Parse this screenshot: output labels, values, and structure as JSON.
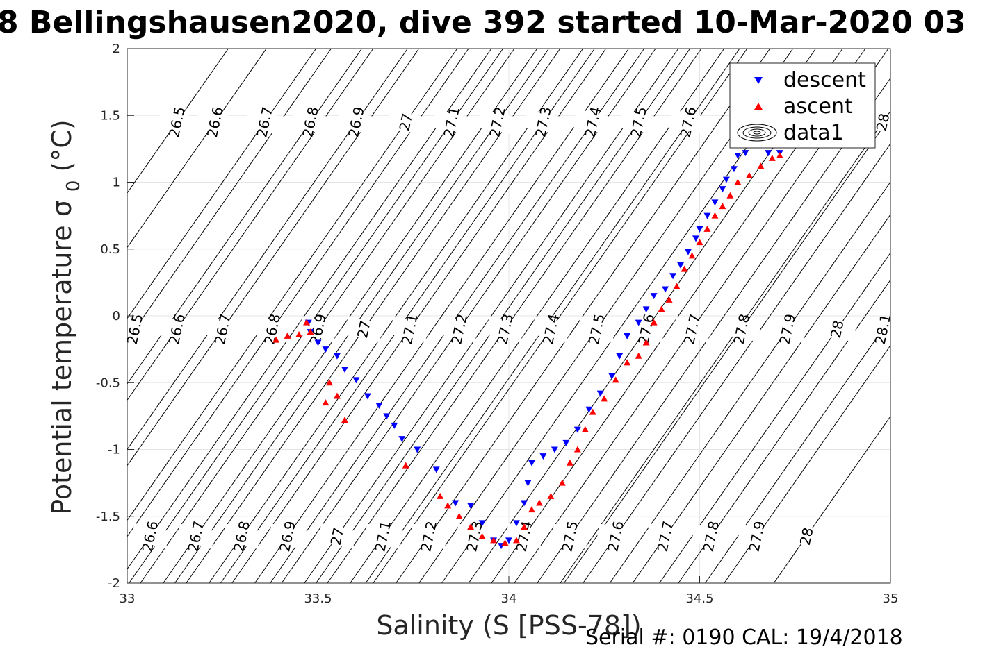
{
  "figure": {
    "title": "8 Bellingshausen2020, dive 392 started 10-Mar-2020 03",
    "footer": "Serial #: 0190  CAL: 19/4/2018"
  },
  "chart_data": {
    "type": "scatter",
    "title": "8 Bellingshausen2020, dive 392 started 10-Mar-2020 03",
    "xlabel": "Salinity (S [PSS-78])",
    "ylabel": "Potential temperature σ 0 (°C)",
    "xlim": [
      33,
      35
    ],
    "ylim": [
      -2,
      2
    ],
    "xticks": [
      33,
      33.5,
      34,
      34.5,
      35
    ],
    "xtick_labels": [
      "33",
      "33.5",
      "34",
      "34.5",
      "35"
    ],
    "yticks": [
      2,
      1.5,
      1,
      0.5,
      0,
      -0.5,
      -1,
      -1.5,
      -2
    ],
    "ytick_labels": [
      "2",
      "1.5",
      "1",
      "0.5",
      "0",
      "-0.5",
      "-1",
      "-1.5",
      "-2"
    ],
    "grid": true,
    "legend_position": "top-right",
    "legend": [
      "descent",
      "ascent",
      "data1"
    ],
    "series": [
      {
        "name": "descent",
        "marker": "triangle-down",
        "color": "#0000ff",
        "points": [
          [
            33.475,
            -0.05
          ],
          [
            33.48,
            -0.12
          ],
          [
            33.5,
            -0.2
          ],
          [
            33.52,
            -0.25
          ],
          [
            33.55,
            -0.3
          ],
          [
            33.57,
            -0.4
          ],
          [
            33.6,
            -0.48
          ],
          [
            33.63,
            -0.6
          ],
          [
            33.66,
            -0.67
          ],
          [
            33.68,
            -0.75
          ],
          [
            33.7,
            -0.82
          ],
          [
            33.72,
            -0.92
          ],
          [
            33.76,
            -1.0
          ],
          [
            33.81,
            -1.15
          ],
          [
            33.86,
            -1.4
          ],
          [
            33.9,
            -1.42
          ],
          [
            33.93,
            -1.55
          ],
          [
            33.96,
            -1.68
          ],
          [
            33.98,
            -1.72
          ],
          [
            34.0,
            -1.68
          ],
          [
            34.02,
            -1.55
          ],
          [
            34.04,
            -1.4
          ],
          [
            34.05,
            -1.25
          ],
          [
            34.06,
            -1.1
          ],
          [
            34.09,
            -1.05
          ],
          [
            34.12,
            -1.0
          ],
          [
            34.15,
            -0.95
          ],
          [
            34.18,
            -0.85
          ],
          [
            34.21,
            -0.7
          ],
          [
            34.24,
            -0.58
          ],
          [
            34.27,
            -0.45
          ],
          [
            34.29,
            -0.3
          ],
          [
            34.31,
            -0.15
          ],
          [
            34.34,
            -0.05
          ],
          [
            34.36,
            0.05
          ],
          [
            34.38,
            0.15
          ],
          [
            34.41,
            0.2
          ],
          [
            34.43,
            0.3
          ],
          [
            34.45,
            0.38
          ],
          [
            34.47,
            0.48
          ],
          [
            34.49,
            0.58
          ],
          [
            34.5,
            0.65
          ],
          [
            34.52,
            0.75
          ],
          [
            34.54,
            0.85
          ],
          [
            34.56,
            0.95
          ],
          [
            34.57,
            1.02
          ],
          [
            34.59,
            1.1
          ],
          [
            34.6,
            1.2
          ],
          [
            34.62,
            1.22
          ],
          [
            34.68,
            1.22
          ],
          [
            34.71,
            1.22
          ]
        ]
      },
      {
        "name": "ascent",
        "marker": "triangle-up",
        "color": "#ff0000",
        "points": [
          [
            33.39,
            -0.18
          ],
          [
            33.42,
            -0.15
          ],
          [
            33.45,
            -0.14
          ],
          [
            33.47,
            -0.05
          ],
          [
            33.48,
            -0.12
          ],
          [
            33.53,
            -0.5
          ],
          [
            33.55,
            -0.6
          ],
          [
            33.57,
            -0.78
          ],
          [
            33.52,
            -0.65
          ],
          [
            33.73,
            -1.12
          ],
          [
            33.82,
            -1.35
          ],
          [
            33.84,
            -1.42
          ],
          [
            33.87,
            -1.5
          ],
          [
            33.9,
            -1.58
          ],
          [
            33.93,
            -1.65
          ],
          [
            33.96,
            -1.68
          ],
          [
            33.99,
            -1.7
          ],
          [
            34.02,
            -1.68
          ],
          [
            34.04,
            -1.58
          ],
          [
            34.06,
            -1.45
          ],
          [
            34.08,
            -1.4
          ],
          [
            34.11,
            -1.35
          ],
          [
            34.14,
            -1.25
          ],
          [
            34.16,
            -1.1
          ],
          [
            34.18,
            -1.0
          ],
          [
            34.2,
            -0.85
          ],
          [
            34.22,
            -0.72
          ],
          [
            34.25,
            -0.62
          ],
          [
            34.28,
            -0.48
          ],
          [
            34.31,
            -0.35
          ],
          [
            34.34,
            -0.3
          ],
          [
            34.36,
            -0.2
          ],
          [
            34.38,
            -0.05
          ],
          [
            34.4,
            0.05
          ],
          [
            34.42,
            0.12
          ],
          [
            34.44,
            0.22
          ],
          [
            34.46,
            0.35
          ],
          [
            34.48,
            0.45
          ],
          [
            34.5,
            0.55
          ],
          [
            34.52,
            0.65
          ],
          [
            34.54,
            0.75
          ],
          [
            34.56,
            0.82
          ],
          [
            34.58,
            0.9
          ],
          [
            34.6,
            1.0
          ],
          [
            34.63,
            1.05
          ],
          [
            34.66,
            1.12
          ],
          [
            34.69,
            1.18
          ],
          [
            34.71,
            1.2
          ]
        ]
      }
    ],
    "contours": {
      "name": "data1",
      "color": "#000000",
      "levels": [
        "26.5",
        "26.6",
        "26.7",
        "26.8",
        "26.9",
        "27",
        "27.1",
        "27.2",
        "27.3",
        "27.4",
        "27.5",
        "27.6",
        "27.7",
        "27.8",
        "27.9",
        "28",
        "28.1"
      ],
      "label_rows": [
        {
          "y": 1.45,
          "labels": [
            [
              "26.5",
              33.13
            ],
            [
              "26.6",
              33.23
            ],
            [
              "26.7",
              33.36
            ],
            [
              "26.8",
              33.48
            ],
            [
              "26.9",
              33.6
            ],
            [
              "27",
              33.73
            ],
            [
              "27.1",
              33.85
            ],
            [
              "27.2",
              33.97
            ],
            [
              "27.3",
              34.09
            ],
            [
              "27.4",
              34.22
            ],
            [
              "27.5",
              34.34
            ],
            [
              "27.6",
              34.47
            ],
            [
              "28",
              34.98
            ]
          ]
        },
        {
          "y": -0.1,
          "labels": [
            [
              "26.5",
              33.02
            ],
            [
              "26.6",
              33.13
            ],
            [
              "26.7",
              33.25
            ],
            [
              "26.8",
              33.38
            ],
            [
              "26.9",
              33.5
            ],
            [
              "27",
              33.62
            ],
            [
              "27.1",
              33.74
            ],
            [
              "27.2",
              33.87
            ],
            [
              "27.3",
              33.99
            ],
            [
              "27.4",
              34.11
            ],
            [
              "27.5",
              34.23
            ],
            [
              "27.6",
              34.36
            ],
            [
              "27.7",
              34.48
            ],
            [
              "27.8",
              34.61
            ],
            [
              "27.9",
              34.73
            ],
            [
              "28",
              34.86
            ],
            [
              "28.1",
              34.98
            ]
          ]
        },
        {
          "y": -1.65,
          "labels": [
            [
              "26.6",
              33.06
            ],
            [
              "26.7",
              33.18
            ],
            [
              "26.8",
              33.3
            ],
            [
              "26.9",
              33.42
            ],
            [
              "27",
              33.55
            ],
            [
              "27.1",
              33.67
            ],
            [
              "27.2",
              33.79
            ],
            [
              "27.3",
              33.91
            ],
            [
              "27.4",
              34.04
            ],
            [
              "27.5",
              34.16
            ],
            [
              "27.6",
              34.28
            ],
            [
              "27.7",
              34.41
            ],
            [
              "27.8",
              34.53
            ],
            [
              "27.9",
              34.65
            ],
            [
              "28",
              34.78
            ]
          ]
        }
      ]
    }
  }
}
